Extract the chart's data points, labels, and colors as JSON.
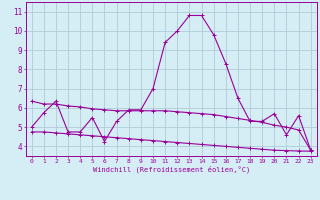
{
  "x": [
    0,
    1,
    2,
    3,
    4,
    5,
    6,
    7,
    8,
    9,
    10,
    11,
    12,
    13,
    14,
    15,
    16,
    17,
    18,
    19,
    20,
    21,
    22,
    23
  ],
  "y_main": [
    5.0,
    5.75,
    6.35,
    4.75,
    4.75,
    5.5,
    4.25,
    5.3,
    5.9,
    5.9,
    7.0,
    9.4,
    10.0,
    10.8,
    10.8,
    9.8,
    8.3,
    6.5,
    5.3,
    5.3,
    5.7,
    4.6,
    5.6,
    3.8
  ],
  "y_upper": [
    6.35,
    6.2,
    6.2,
    6.1,
    6.05,
    5.95,
    5.9,
    5.85,
    5.85,
    5.85,
    5.85,
    5.85,
    5.8,
    5.75,
    5.7,
    5.65,
    5.55,
    5.45,
    5.35,
    5.25,
    5.1,
    5.0,
    4.85,
    3.8
  ],
  "y_lower": [
    4.75,
    4.75,
    4.7,
    4.65,
    4.6,
    4.55,
    4.5,
    4.45,
    4.4,
    4.35,
    4.3,
    4.25,
    4.2,
    4.15,
    4.1,
    4.05,
    4.0,
    3.95,
    3.9,
    3.85,
    3.8,
    3.78,
    3.76,
    3.75
  ],
  "line_color": "#990099",
  "bg_color": "#d5edf5",
  "grid_color": "#b0ccd8",
  "xlabel": "Windchill (Refroidissement éolien,°C)",
  "yticks": [
    4,
    5,
    6,
    7,
    8,
    9,
    10,
    11
  ],
  "xticks": [
    0,
    1,
    2,
    3,
    4,
    5,
    6,
    7,
    8,
    9,
    10,
    11,
    12,
    13,
    14,
    15,
    16,
    17,
    18,
    19,
    20,
    21,
    22,
    23
  ],
  "ylim": [
    3.5,
    11.5
  ],
  "xlim": [
    -0.5,
    23.5
  ]
}
